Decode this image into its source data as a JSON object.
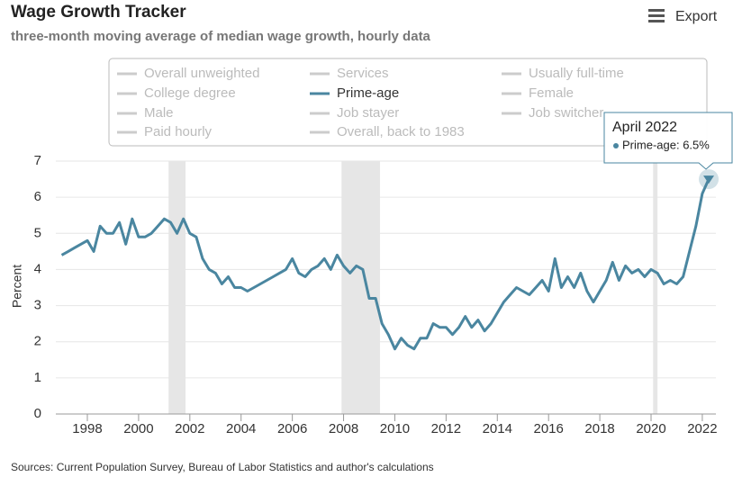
{
  "chart_data": {
    "type": "line",
    "title": "Wage Growth Tracker",
    "subtitle": "three-month moving average of median wage growth, hourly data",
    "export_label": "Export",
    "ylabel": "Percent",
    "source": "Sources: Current Population Survey, Bureau of Labor Statistics and author's calculations",
    "x": [
      1997.0,
      1997.25,
      1997.5,
      1997.75,
      1998.0,
      1998.25,
      1998.5,
      1998.75,
      1999.0,
      1999.25,
      1999.5,
      1999.75,
      2000.0,
      2000.25,
      2000.5,
      2000.75,
      2001.0,
      2001.25,
      2001.5,
      2001.75,
      2002.0,
      2002.25,
      2002.5,
      2002.75,
      2003.0,
      2003.25,
      2003.5,
      2003.75,
      2004.0,
      2004.25,
      2004.5,
      2004.75,
      2005.0,
      2005.25,
      2005.5,
      2005.75,
      2006.0,
      2006.25,
      2006.5,
      2006.75,
      2007.0,
      2007.25,
      2007.5,
      2007.75,
      2008.0,
      2008.25,
      2008.5,
      2008.75,
      2009.0,
      2009.25,
      2009.5,
      2009.75,
      2010.0,
      2010.25,
      2010.5,
      2010.75,
      2011.0,
      2011.25,
      2011.5,
      2011.75,
      2012.0,
      2012.25,
      2012.5,
      2012.75,
      2013.0,
      2013.25,
      2013.5,
      2013.75,
      2014.0,
      2014.25,
      2014.5,
      2014.75,
      2015.0,
      2015.25,
      2015.5,
      2015.75,
      2016.0,
      2016.25,
      2016.5,
      2016.75,
      2017.0,
      2017.25,
      2017.5,
      2017.75,
      2018.0,
      2018.25,
      2018.5,
      2018.75,
      2019.0,
      2019.25,
      2019.5,
      2019.75,
      2020.0,
      2020.25,
      2020.5,
      2020.75,
      2021.0,
      2021.25,
      2021.5,
      2021.75,
      2022.0,
      2022.25
    ],
    "series": [
      {
        "name": "Prime-age",
        "color": "#4a86a0",
        "values": [
          4.4,
          4.5,
          4.6,
          4.7,
          4.8,
          4.5,
          5.2,
          5.0,
          5.0,
          5.3,
          4.7,
          5.4,
          4.9,
          4.9,
          5.0,
          5.2,
          5.4,
          5.3,
          5.0,
          5.4,
          5.0,
          4.9,
          4.3,
          4.0,
          3.9,
          3.6,
          3.8,
          3.5,
          3.5,
          3.4,
          3.5,
          3.6,
          3.7,
          3.8,
          3.9,
          4.0,
          4.3,
          3.9,
          3.8,
          4.0,
          4.1,
          4.3,
          4.0,
          4.4,
          4.1,
          3.9,
          4.1,
          4.0,
          3.2,
          3.2,
          2.5,
          2.2,
          1.8,
          2.1,
          1.9,
          1.8,
          2.1,
          2.1,
          2.5,
          2.4,
          2.4,
          2.2,
          2.4,
          2.7,
          2.4,
          2.6,
          2.3,
          2.5,
          2.8,
          3.1,
          3.3,
          3.5,
          3.4,
          3.3,
          3.5,
          3.7,
          3.4,
          4.3,
          3.5,
          3.8,
          3.5,
          3.9,
          3.4,
          3.1,
          3.4,
          3.7,
          4.2,
          3.7,
          4.1,
          3.9,
          4.0,
          3.8,
          4.0,
          3.9,
          3.6,
          3.7,
          3.6,
          3.8,
          4.5,
          5.2,
          6.1,
          6.5
        ]
      }
    ],
    "inactive_series": [
      "Overall unweighted",
      "Services",
      "Usually full-time",
      "College degree",
      "Female",
      "Male",
      "Job stayer",
      "Job switcher",
      "Paid hourly",
      "Overall, back to 1983"
    ],
    "recessions": [
      [
        2001.17,
        2001.83
      ],
      [
        2007.92,
        2009.42
      ],
      [
        2020.08,
        2020.25
      ]
    ],
    "tooltip": {
      "title": "April 2022",
      "label": "Prime-age: 6.5%"
    },
    "xlim": [
      1996.77,
      2022.53
    ],
    "xticks": [
      1998,
      2000,
      2002,
      2004,
      2006,
      2008,
      2010,
      2012,
      2014,
      2016,
      2018,
      2020,
      2022
    ],
    "ylim": [
      0,
      7
    ],
    "yticks": [
      0,
      1,
      2,
      3,
      4,
      5,
      6,
      7
    ],
    "grid": true
  }
}
